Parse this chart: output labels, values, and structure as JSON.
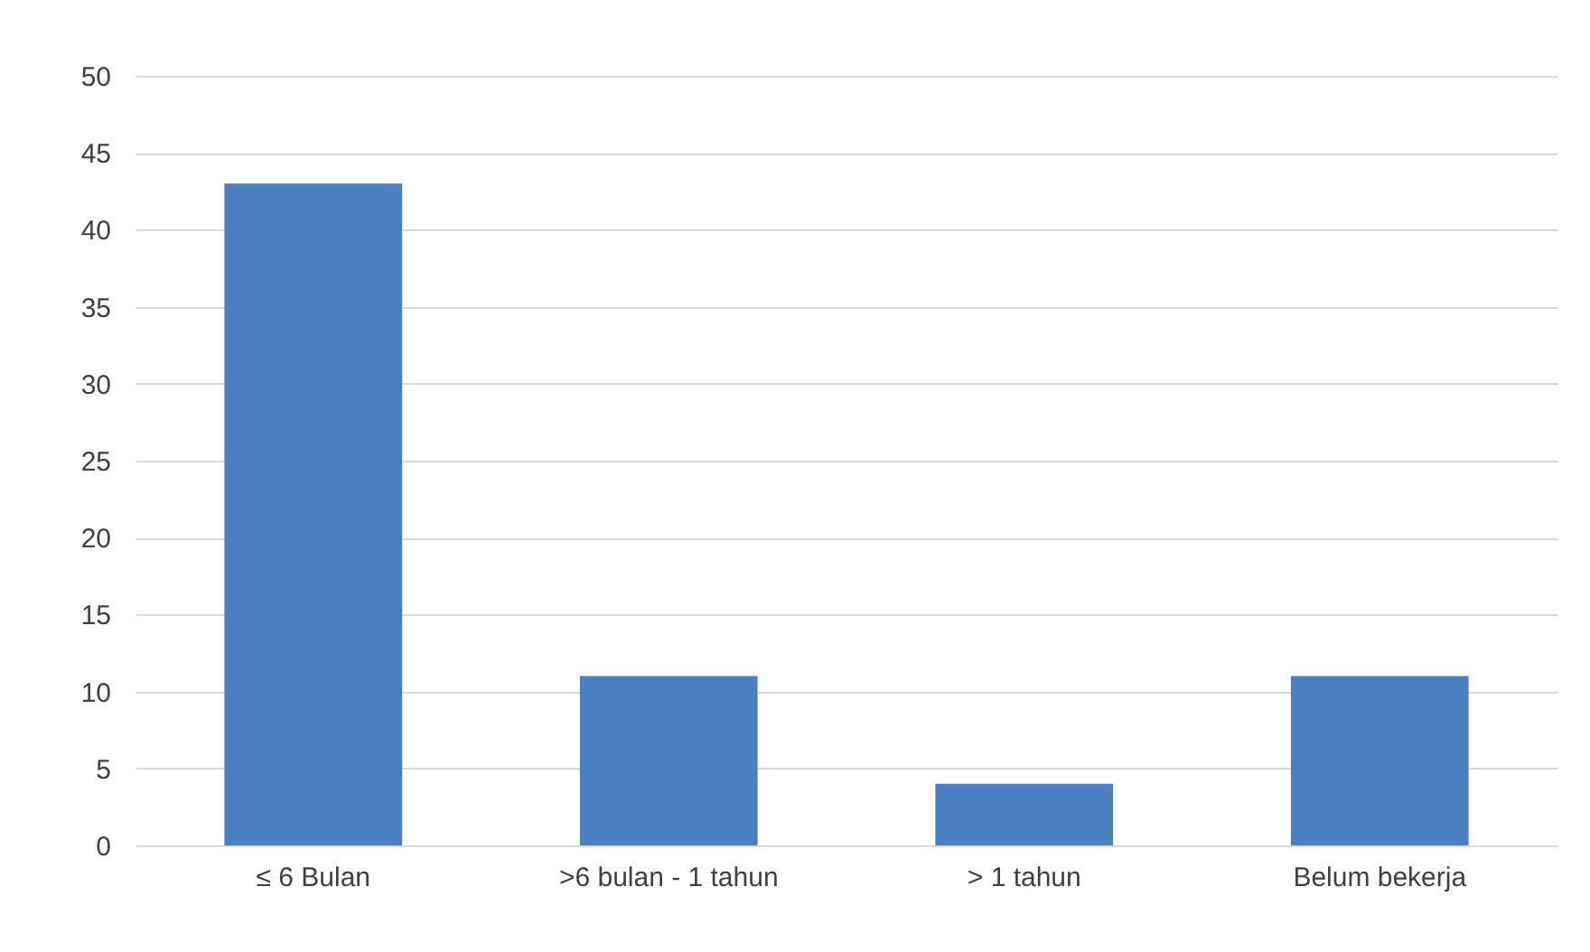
{
  "chart_data": {
    "type": "bar",
    "categories": [
      "≤ 6 Bulan",
      ">6 bulan - 1 tahun",
      "> 1 tahun",
      "Belum bekerja"
    ],
    "values": [
      43,
      11,
      4,
      11
    ],
    "color": "#4a7fc1",
    "ylim": [
      0,
      50
    ],
    "yticks": [
      0,
      5,
      10,
      15,
      20,
      25,
      30,
      35,
      40,
      45,
      50
    ],
    "grid": "y"
  }
}
